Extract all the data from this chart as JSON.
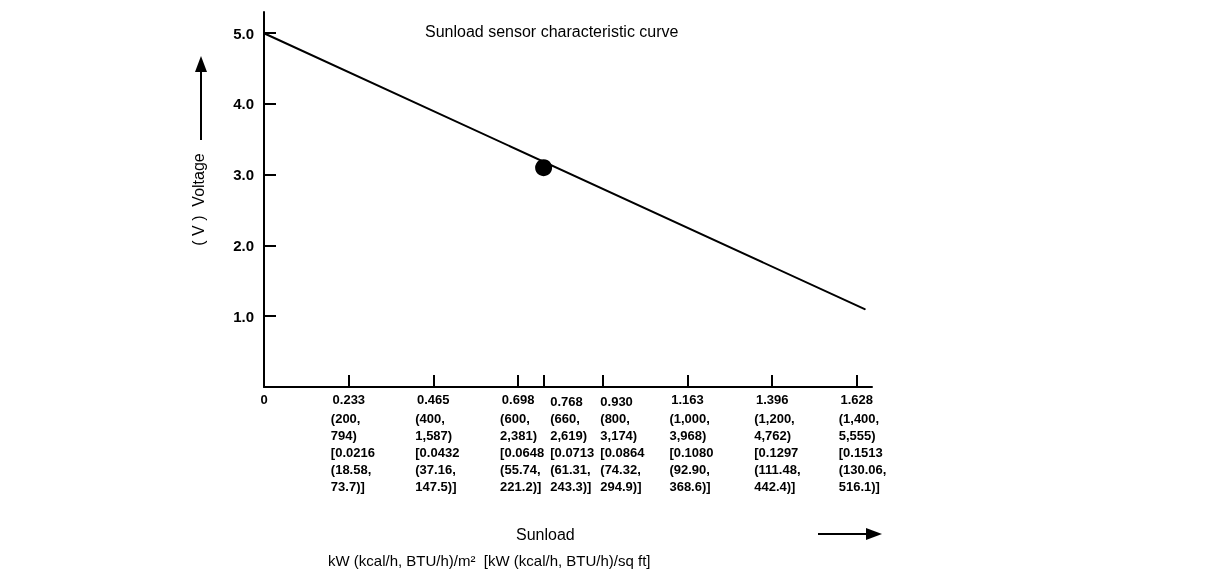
{
  "chart_data": {
    "type": "line",
    "title": "Sunload sensor characteristic curve",
    "ylabel": "( V )  Voltage",
    "annotations": [
      "(200,\n794)\n[0.0216\n(18.58,\n73.7)]",
      "(400,\n1,587)\n[0.0432\n(37.16,\n147.5)]",
      "(600,\n2,381)\n[0.0648\n(55.74,\n221.2)]",
      "0.768\n(660,\n2,619)\n[0.0713\n(61.31,\n243.3)]",
      "0.930\n(800,\n3,174)\n[0.0864\n(74.32,\n294.9)]",
      "(1,000,\n3,968)\n[0.1080\n(92.90,\n368.6)]",
      "(1,200,\n4,762)\n[0.1297\n(111.48,\n442.4)]",
      "(1,400,\n5,555)\n[0.1513\n(130.06,\n516.1)]",
      "Sunload",
      "kW (kcal/h, BTU/h)/m²  [kW (kcal/h, BTU/h)/sq ft]"
    ],
    "xlim": [
      0,
      1.67
    ],
    "xticks": [
      0,
      0.233,
      0.465,
      0.698,
      {
        "value": 0.768,
        "label": null
      },
      {
        "value": 0.93,
        "label": null
      },
      1.163,
      1.396,
      1.628
    ],
    "ylim": [
      0,
      5.3
    ],
    "yticks": [
      {
        "value": 1,
        "label": "1.0"
      },
      {
        "value": 2,
        "label": "2.0"
      },
      {
        "value": 3,
        "label": "3.0"
      },
      {
        "value": 4,
        "label": "4.0"
      },
      {
        "value": 5,
        "label": "5.0"
      }
    ],
    "grid": false,
    "series": [
      {
        "type": "line",
        "color": "#000000",
        "marker": "none",
        "line_style": "solid",
        "x": [
          0,
          1.65
        ],
        "values": [
          5.0,
          1.1
        ]
      },
      {
        "type": "scatter",
        "color": "#000000",
        "marker": "circle",
        "x": [
          0.768
        ],
        "values": [
          3.1
        ]
      }
    ]
  }
}
